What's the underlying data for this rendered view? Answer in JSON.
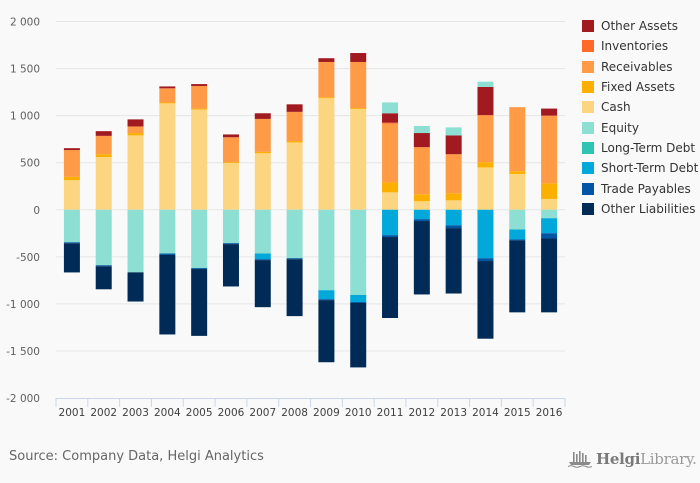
{
  "chart_data": {
    "type": "bar",
    "stacked": true,
    "title": "",
    "xlabel": "",
    "ylabel": "",
    "ylim": [
      -2000,
      2000
    ],
    "yticks": [
      2000,
      1500,
      1000,
      500,
      0,
      -500,
      -1000,
      -1500,
      -2000
    ],
    "ytick_labels": [
      "2 000",
      "1 500",
      "1 000",
      "500",
      "0",
      "-500",
      "-1 000",
      "-1 500",
      "-2 000"
    ],
    "grid": true,
    "legend_position": "right",
    "categories": [
      "2001",
      "2002",
      "2003",
      "2004",
      "2005",
      "2006",
      "2007",
      "2008",
      "2009",
      "2010",
      "2011",
      "2012",
      "2013",
      "2014",
      "2015",
      "2016"
    ],
    "series": [
      {
        "name": "Other Assets",
        "color": "#a01a1f",
        "values": [
          20,
          50,
          75,
          20,
          20,
          30,
          60,
          80,
          40,
          95,
          100,
          150,
          200,
          300,
          0,
          75
        ]
      },
      {
        "name": "Inventories",
        "color": "#ff6a2b",
        "values": [
          0,
          0,
          0,
          0,
          0,
          0,
          0,
          0,
          0,
          0,
          10,
          0,
          0,
          0,
          0,
          0
        ]
      },
      {
        "name": "Receivables",
        "color": "#ff9b47",
        "values": [
          285,
          195,
          70,
          150,
          240,
          265,
          350,
          310,
          375,
          490,
          625,
          500,
          415,
          500,
          680,
          720
        ]
      },
      {
        "name": "Fixed Assets",
        "color": "#fbb000",
        "values": [
          35,
          30,
          25,
          10,
          10,
          10,
          15,
          15,
          10,
          10,
          105,
          75,
          75,
          55,
          30,
          165
        ]
      },
      {
        "name": "Cash",
        "color": "#fcd581",
        "values": [
          314,
          560,
          790,
          1130,
          1065,
          495,
          600,
          715,
          1185,
          1070,
          185,
          90,
          100,
          450,
          380,
          115
        ]
      },
      {
        "name": "Equity",
        "color": "#8ddfd4",
        "values": [
          -346,
          -590,
          -665,
          -465,
          -620,
          -355,
          -465,
          -515,
          -855,
          -905,
          115,
          75,
          85,
          55,
          -210,
          -90
        ]
      },
      {
        "name": "Long-Term Debt",
        "color": "#2ec4b1",
        "values": [
          0,
          0,
          0,
          0,
          0,
          0,
          0,
          0,
          0,
          0,
          0,
          0,
          0,
          0,
          0,
          0
        ]
      },
      {
        "name": "Short-Term Debt",
        "color": "#00a9d9",
        "values": [
          0,
          0,
          0,
          0,
          0,
          0,
          -60,
          0,
          -95,
          -75,
          -270,
          -100,
          -165,
          -515,
          -105,
          -160
        ]
      },
      {
        "name": "Trade Payables",
        "color": "#0055a5",
        "values": [
          -10,
          -10,
          0,
          -15,
          -10,
          -10,
          -10,
          -10,
          -10,
          -10,
          -20,
          -20,
          -30,
          -30,
          -10,
          -55
        ]
      },
      {
        "name": "Other Liabilities",
        "color": "#002b57",
        "values": [
          -310,
          -245,
          -310,
          -845,
          -710,
          -450,
          -500,
          -605,
          -660,
          -685,
          -860,
          -780,
          -695,
          -825,
          -765,
          -785
        ]
      }
    ],
    "stack_order_positive": [
      "Cash",
      "Fixed Assets",
      "Receivables",
      "Inventories",
      "Other Assets",
      "Equity"
    ],
    "stack_order_negative": [
      "Equity",
      "Long-Term Debt",
      "Short-Term Debt",
      "Trade Payables",
      "Other Liabilities"
    ]
  },
  "footer": {
    "source": "Source: Company Data, Helgi Analytics",
    "brand_bold": "Helgi",
    "brand_light": "Library."
  }
}
